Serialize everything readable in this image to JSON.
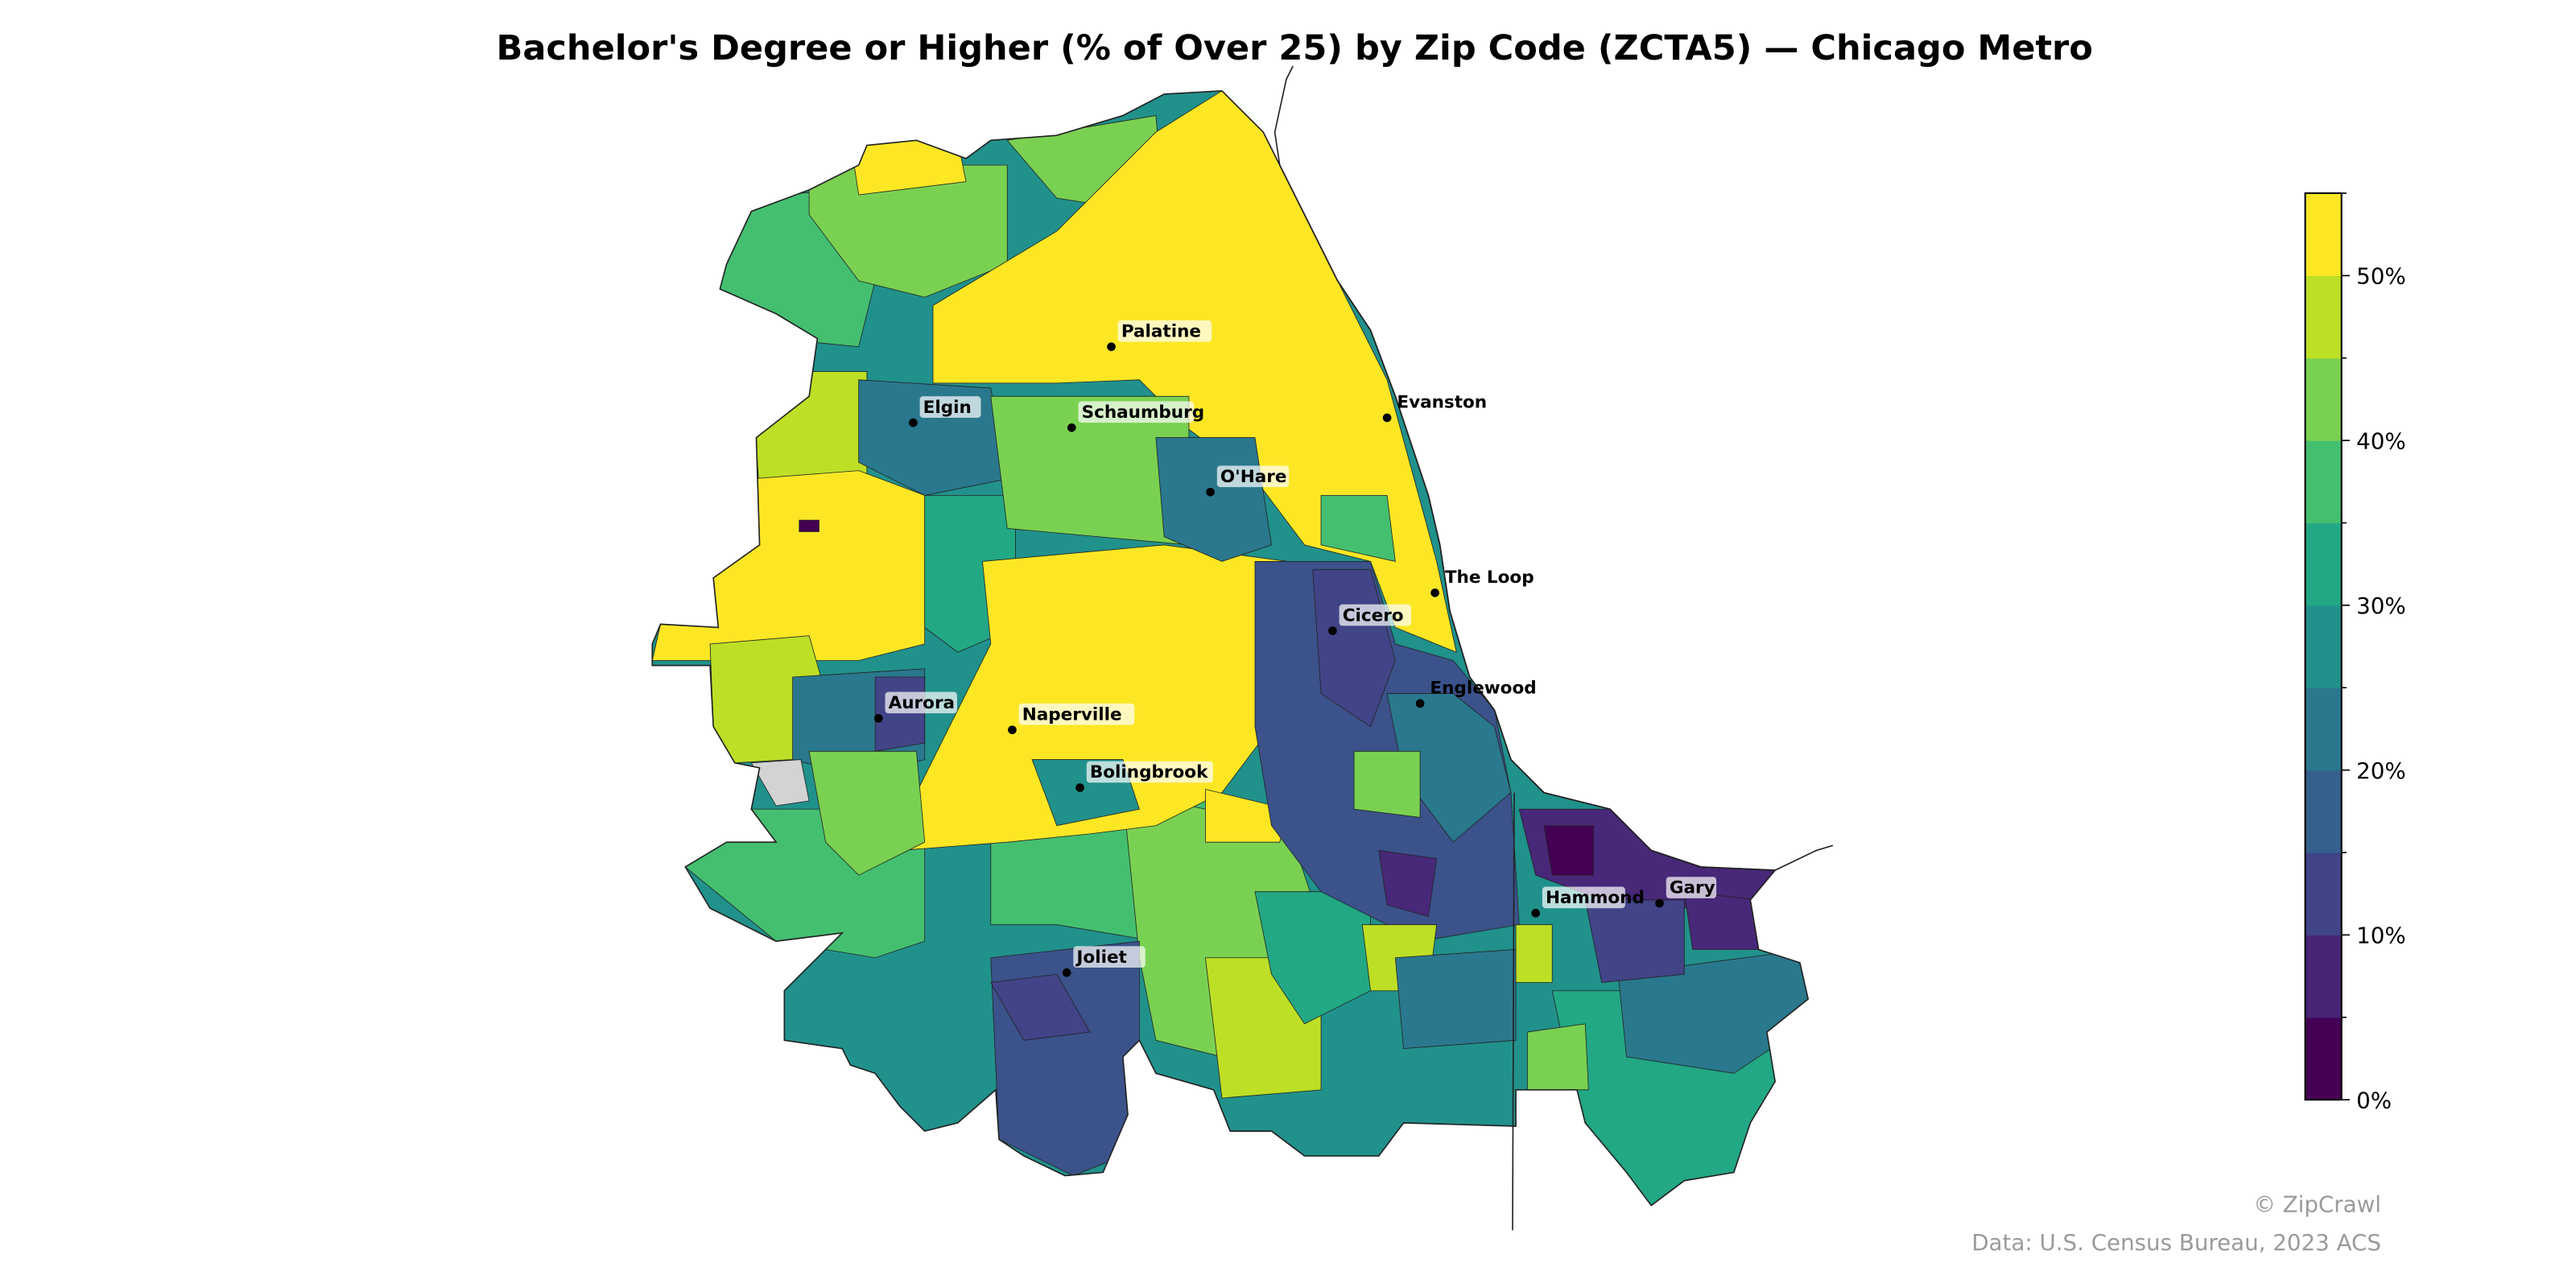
{
  "title": "Bachelor's Degree or Higher (% of Over 25) by Zip Code (ZCTA5) — Chicago Metro",
  "chart_data": {
    "type": "choropleth",
    "title": "Bachelor's Degree or Higher (% of Over 25) by Zip Code (ZCTA5) — Chicago Metro",
    "colorbar": {
      "range": [
        0,
        55
      ],
      "bin_step": 5,
      "tick_labels": [
        "0%",
        "10%",
        "20%",
        "30%",
        "40%",
        "50%"
      ],
      "tick_values": [
        0,
        10,
        20,
        30,
        40,
        50
      ],
      "colors": [
        "#440154",
        "#482475",
        "#414487",
        "#355f8d",
        "#2a788e",
        "#21918c",
        "#22a884",
        "#44bf70",
        "#7ad151",
        "#bddf26",
        "#fde725"
      ],
      "placement": "right"
    },
    "missing_color": "#d3d3d3",
    "cities": [
      {
        "name": "Palatine"
      },
      {
        "name": "Elgin"
      },
      {
        "name": "Schaumburg"
      },
      {
        "name": "Evanston"
      },
      {
        "name": "O'Hare"
      },
      {
        "name": "The Loop"
      },
      {
        "name": "Cicero"
      },
      {
        "name": "Englewood"
      },
      {
        "name": "Aurora"
      },
      {
        "name": "Naperville"
      },
      {
        "name": "Bolingbrook"
      },
      {
        "name": "Hammond"
      },
      {
        "name": "Gary"
      },
      {
        "name": "Joliet"
      }
    ]
  },
  "footer": {
    "copyright": "© ZipCrawl",
    "source": "Data: U.S. Census Bureau, 2023 ACS"
  }
}
